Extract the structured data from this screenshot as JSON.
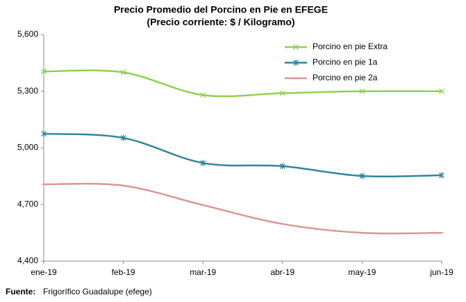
{
  "chart_data": {
    "type": "line",
    "title": "Precio Promedio del Porcino en Pie en EFEGE",
    "subtitle": "(Precio corriente: $ / Kilogramo)",
    "categories": [
      "ene-19",
      "feb-19",
      "mar-19",
      "abr-19",
      "may-19",
      "jun-19"
    ],
    "series": [
      {
        "name": "Porcino en pie Extra",
        "color": "#8fd14f",
        "marker": "x",
        "values": [
          5405,
          5400,
          5280,
          5290,
          5300,
          5300
        ]
      },
      {
        "name": "Porcino en pie 1a",
        "color": "#31849b",
        "marker": "asterisk",
        "values": [
          5075,
          5053,
          4920,
          4903,
          4851,
          4855
        ]
      },
      {
        "name": "Porcino en pie 2a",
        "color": "#d99594",
        "marker": "dash",
        "values": [
          4807,
          4800,
          4697,
          4597,
          4550,
          4550
        ]
      }
    ],
    "ylim": [
      4400,
      5600
    ],
    "yticks": [
      {
        "value": 4400,
        "label": "4,400"
      },
      {
        "value": 4700,
        "label": "4,700"
      },
      {
        "value": 5000,
        "label": "5,000"
      },
      {
        "value": 5300,
        "label": "5,300"
      },
      {
        "value": 5600,
        "label": "5,600"
      }
    ],
    "grid": false,
    "legend": "top-right",
    "source_label": "Fuente:",
    "source": "Frigorífico Guadalupe (efege)"
  }
}
